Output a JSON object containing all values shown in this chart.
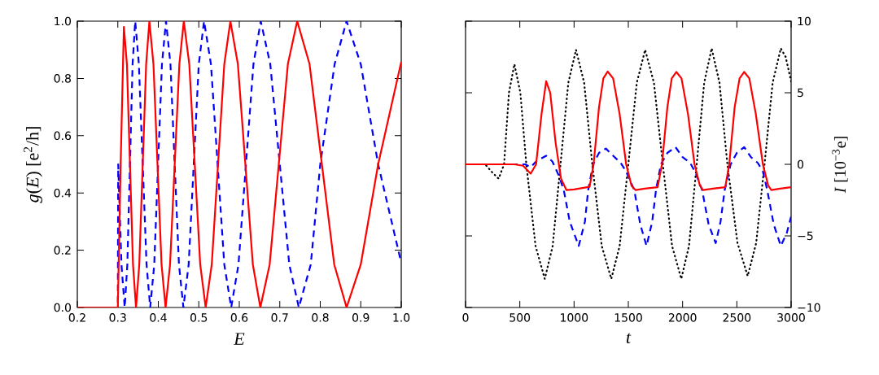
{
  "chart_data": [
    {
      "type": "line",
      "xlabel": "E",
      "ylabel": "*g*(*E*) [e$^{2}$/h]",
      "xlim": [
        0.2,
        1.0
      ],
      "ylim": [
        0.0,
        1.0
      ],
      "xticks": [
        0.2,
        0.3,
        0.4,
        0.5,
        0.6,
        0.7,
        0.8,
        0.9,
        {
          "value": 1.0,
          "label": "1.0"
        }
      ],
      "yticks": [
        {
          "value": 0.0,
          "label": "0.0"
        },
        0.2,
        0.4,
        0.6,
        0.8,
        {
          "value": 1.0,
          "label": "1.0"
        }
      ],
      "series": [
        {
          "color": "#0000ff",
          "line_style": "dashed",
          "x": [
            0.2,
            0.3,
            0.301,
            0.309,
            0.317,
            0.3235,
            0.33,
            0.3365,
            0.343,
            0.352,
            0.3615,
            0.371,
            0.38,
            0.39,
            0.3995,
            0.409,
            0.419,
            0.43,
            0.4405,
            0.451,
            0.462,
            0.475,
            0.4875,
            0.5,
            0.513,
            0.53,
            0.5465,
            0.563,
            0.58,
            0.598,
            0.6165,
            0.635,
            0.653,
            0.6765,
            0.7,
            0.7235,
            0.747,
            0.7765,
            0.8,
            0.8355,
            0.865,
            0.9,
            0.943,
            1.0
          ],
          "values": [
            0,
            0,
            0.5,
            0.15,
            0,
            0.15,
            0.5,
            0.85,
            1.0,
            0.85,
            0.5,
            0.15,
            0,
            0.15,
            0.5,
            0.85,
            1.0,
            0.85,
            0.5,
            0.15,
            0,
            0.15,
            0.5,
            0.85,
            1.0,
            0.85,
            0.5,
            0.15,
            0,
            0.15,
            0.5,
            0.85,
            1.0,
            0.85,
            0.5,
            0.15,
            0,
            0.15,
            0.5,
            0.85,
            1.0,
            0.85,
            0.5,
            0.156
          ]
        },
        {
          "color": "#ff0000",
          "line_style": "solid",
          "x": [
            0.2,
            0.3,
            0.307,
            0.315,
            0.3225,
            0.33,
            0.3375,
            0.345,
            0.353,
            0.3615,
            0.37,
            0.378,
            0.388,
            0.398,
            0.408,
            0.418,
            0.429,
            0.4405,
            0.452,
            0.463,
            0.4765,
            0.49,
            0.5035,
            0.517,
            0.532,
            0.5475,
            0.563,
            0.578,
            0.5965,
            0.615,
            0.6335,
            0.652,
            0.675,
            0.6975,
            0.72,
            0.743,
            0.7735,
            0.804,
            0.8345,
            0.865,
            0.9,
            0.943,
            1.0
          ],
          "values": [
            0,
            0,
            0.5,
            0.98,
            0.85,
            0.5,
            0.15,
            0,
            0.15,
            0.5,
            0.85,
            1.0,
            0.85,
            0.5,
            0.15,
            0,
            0.15,
            0.5,
            0.85,
            1.0,
            0.85,
            0.5,
            0.15,
            0,
            0.15,
            0.5,
            0.85,
            1.0,
            0.85,
            0.5,
            0.15,
            0,
            0.15,
            0.5,
            0.85,
            1.0,
            0.85,
            0.5,
            0.15,
            0,
            0.15,
            0.5,
            0.858
          ]
        }
      ]
    },
    {
      "type": "line",
      "xlabel": "t",
      "ylabel": "*I* [10$^{−3}$e]",
      "xlim": [
        0,
        3000
      ],
      "ylim": [
        -10,
        10
      ],
      "xticks": [
        0,
        500,
        1000,
        1500,
        2000,
        2500,
        3000
      ],
      "yticks": [
        {
          "value": -10,
          "label": "−10"
        },
        {
          "value": -5,
          "label": "−5"
        },
        0,
        5,
        10
      ],
      "series": [
        {
          "color": "#000000",
          "line_style": "dotted",
          "x": [
            0,
            180,
            250,
            305,
            355,
            400,
            450,
            505,
            560,
            645,
            730,
            803,
            875,
            947,
            1018,
            1093,
            1168,
            1255,
            1343,
            1420,
            1500,
            1578,
            1655,
            1736,
            1818,
            1903,
            1988,
            2059,
            2130,
            2199,
            2268,
            2340,
            2413,
            2506,
            2600,
            2678,
            2755,
            2830,
            2905,
            2950,
            3000
          ],
          "values": [
            0,
            0,
            -0.6,
            -1.0,
            0,
            5.0,
            7.0,
            5.0,
            0,
            -5.7,
            -8.0,
            -5.7,
            0,
            5.7,
            8.0,
            5.7,
            0,
            -5.7,
            -8.0,
            -5.7,
            0,
            5.7,
            8.0,
            5.7,
            0,
            -5.7,
            -8.0,
            -5.7,
            0,
            5.7,
            8.1,
            5.7,
            0,
            -5.5,
            -7.8,
            -5.5,
            0,
            5.7,
            8.1,
            7.5,
            5.8
          ]
        },
        {
          "color": "#0000ff",
          "line_style": "dashed",
          "x": [
            0,
            550,
            600,
            650,
            743,
            800,
            860,
            905,
            960,
            1043,
            1100,
            1130,
            1175,
            1230,
            1293,
            1360,
            1430,
            1480,
            1555,
            1610,
            1668,
            1720,
            1755,
            1800,
            1860,
            1935,
            2000,
            2070,
            2120,
            2180,
            2240,
            2305,
            2350,
            2388,
            2443,
            2500,
            2568,
            2630,
            2693,
            2740,
            2780,
            2840,
            2905,
            2960,
            3000
          ],
          "values": [
            0,
            0,
            -0.2,
            0.2,
            0.6,
            0.2,
            -0.8,
            -1.8,
            -4.0,
            -5.7,
            -4.0,
            -1.8,
            0,
            0.8,
            1.1,
            0.6,
            0.1,
            -0.5,
            -1.8,
            -4.2,
            -5.7,
            -4.0,
            -1.8,
            0,
            0.8,
            1.2,
            0.5,
            0.1,
            -0.6,
            -1.8,
            -4.2,
            -5.5,
            -4.0,
            -1.8,
            0,
            0.8,
            1.2,
            0.5,
            0.1,
            -0.5,
            -1.8,
            -4.2,
            -5.7,
            -4.8,
            -3.65
          ]
        },
        {
          "color": "#ff0000",
          "line_style": "solid",
          "x": [
            0,
            450,
            530,
            600,
            650,
            700,
            743,
            780,
            830,
            880,
            930,
            1000,
            1143,
            1180,
            1230,
            1270,
            1310,
            1360,
            1420,
            1480,
            1530,
            1568,
            1650,
            1770,
            1810,
            1860,
            1900,
            1943,
            1990,
            2050,
            2110,
            2160,
            2188,
            2280,
            2393,
            2430,
            2480,
            2525,
            2568,
            2615,
            2675,
            2740,
            2790,
            2818,
            2900,
            3000
          ],
          "values": [
            0,
            0,
            -0.1,
            -0.65,
            0,
            3.5,
            5.8,
            5.0,
            1.5,
            -1.0,
            -1.8,
            -1.75,
            -1.57,
            0,
            4.0,
            6.0,
            6.48,
            6.0,
            3.5,
            0,
            -1.5,
            -1.8,
            -1.7,
            -1.6,
            0,
            4.0,
            6.0,
            6.45,
            6.0,
            3.5,
            0,
            -1.5,
            -1.8,
            -1.7,
            -1.6,
            0,
            4.0,
            6.0,
            6.45,
            6.0,
            3.5,
            0,
            -1.5,
            -1.8,
            -1.7,
            -1.6
          ]
        }
      ]
    }
  ]
}
